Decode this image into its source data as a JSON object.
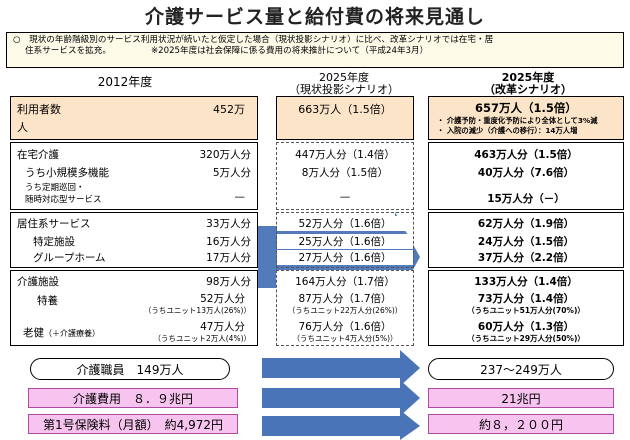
{
  "title": "介護サービス量と給付費の将来見通し",
  "note": {
    "bullet": "○",
    "line1": "現状の年齢階級別のサービス利用状況が続いたと仮定した場合（現状投影シナリオ）に比べ、改革シナリオでは在宅・居",
    "line2": "住系サービスを拡充。",
    "line2_sub": "※2025年度は社会保障に係る費用の将来推計について（平成24年3月）"
  },
  "headers": {
    "col1": "2012年度",
    "col2_line1": "2025年度",
    "col2_line2": "（現状投影シナリオ）",
    "col3_line1": "2025年度",
    "col3_line2": "（改革シナリオ）"
  },
  "users": {
    "label": "利用者数",
    "label2": "人",
    "v2012": "452万",
    "v_current": "663万人（1.5倍）",
    "v_reform": "657万人（1.5倍）",
    "reform_note1": "・ 介護予防・重度化予防により全体として3%減",
    "reform_note2": "・ 入院の減少（介護への移行）：14万人増"
  },
  "home": {
    "label": "在宅介護",
    "v2012": "320万人分",
    "v_current": "447万人分（1.4倍）",
    "v_reform": "463万人分（1.5倍）",
    "sub1_label": "うち小規模多機能",
    "sub1_v2012": "5万人分",
    "sub1_current": "8万人分（1.5倍）",
    "sub1_reform": "40万人分（7.6倍）",
    "sub2_label1": "うち定期巡回・",
    "sub2_label2": "随時対応型サービス",
    "sub2_v2012": "—",
    "sub2_current": "—",
    "sub2_reform": "15万人分（－）"
  },
  "residential": {
    "label": "居住系サービス",
    "v2012": "33万人分",
    "v_current": "52万人分（1.6倍）",
    "v_reform": "62万人分（1.9倍）",
    "sub1_label": "特定施設",
    "sub1_v2012": "16万人分",
    "sub1_current": "25万人分（1.6倍）",
    "sub1_reform": "24万人分（1.5倍）",
    "sub2_label": "グループホーム",
    "sub2_v2012": "17万人分",
    "sub2_current": "27万人分（1.6倍）",
    "sub2_reform": "37万人分（2.2倍）"
  },
  "facility": {
    "label": "介護施設",
    "v2012": "98万人分",
    "v_current": "164万人分（1.7倍）",
    "v_reform": "133万人分（1.4倍）",
    "sub1_label": "特養",
    "sub1_v2012": "52万人分",
    "sub1_v2012_note": "（うちユニット13万人(26%)）",
    "sub1_current": "87万人分（1.7倍）",
    "sub1_current_note": "（うちユニット22万人分(26%)）",
    "sub1_reform": "73万人分（1.4倍）",
    "sub1_reform_note": "（うちユニット51万人分(70%)）",
    "sub2_label": "老健",
    "sub2_label_note": "（＋介護療養）",
    "sub2_v2012": "47万人分",
    "sub2_v2012_note": "（うちユニット2万人(4%)）",
    "sub2_current": "76万人分（1.6倍）",
    "sub2_current_note": "（うちユニット4万人分(5%)）",
    "sub2_reform": "60万人分（1.3倍）",
    "sub2_reform_note": "（うちユニット29万人分(50%)）"
  },
  "staff": {
    "v2012": "介護職員　149万人",
    "v_reform": "237〜249万人"
  },
  "cost": {
    "v2012": "介護費用　８．９兆円",
    "v_reform": "21兆円"
  },
  "premium": {
    "v2012": "第1号保険料（月額）　約4,972円",
    "v_reform": "約８，２００円"
  },
  "colors": {
    "users_bg": "#fce4c8",
    "arrow_blue": "#4a74b8",
    "pink": "#f6c4ee"
  }
}
